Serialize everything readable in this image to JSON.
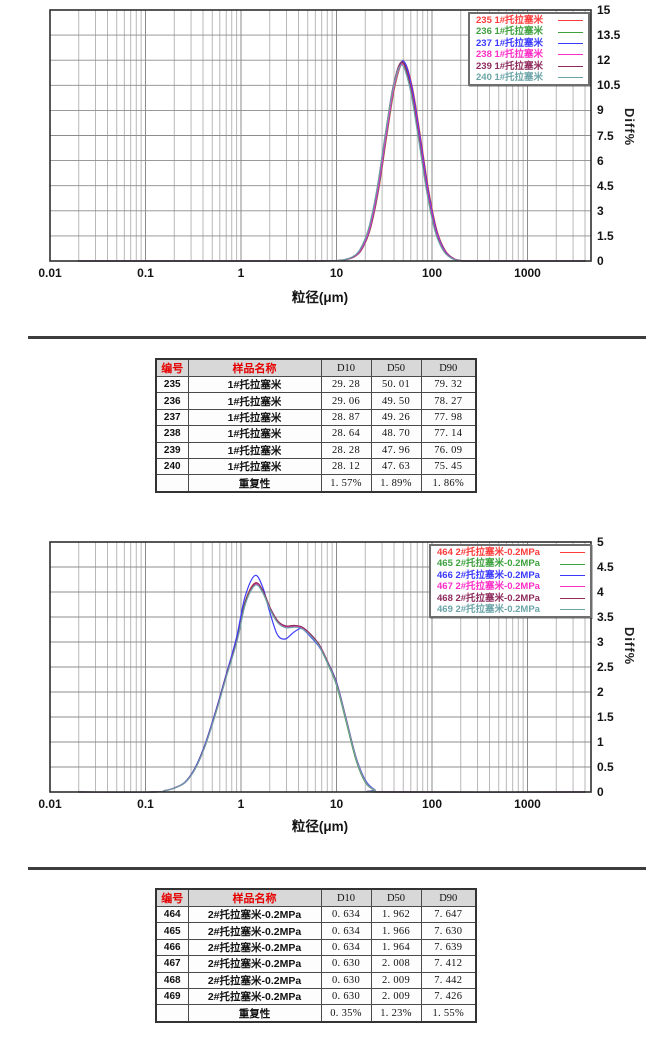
{
  "chart_data": [
    {
      "type": "line",
      "title": "",
      "xlabel": "粒径(μm)",
      "ylabel": "Diff%",
      "x_scale_type": "log",
      "xlim": [
        0.01,
        4600
      ],
      "ylim": [
        0,
        15
      ],
      "x_ticks": [
        0.01,
        0.1,
        1,
        10,
        100,
        1000
      ],
      "y_ticks": [
        15,
        13.5,
        12,
        10.5,
        9,
        7.5,
        6,
        4.5,
        3,
        1.5,
        0
      ],
      "grid": true,
      "legend_position": "top-right",
      "peak": {
        "mode_um": 49,
        "peak_diff_pct": 11.9
      },
      "base_curve": {
        "x": [
          0.02,
          5,
          10,
          12,
          15,
          18,
          22,
          27,
          33,
          40,
          49,
          60,
          73,
          90,
          110,
          135,
          165,
          200,
          280,
          4000
        ],
        "y": [
          0,
          0,
          0.02,
          0.07,
          0.25,
          0.7,
          1.9,
          4.3,
          7.6,
          10.5,
          11.9,
          10.5,
          7.6,
          4.2,
          1.8,
          0.6,
          0.15,
          0.02,
          0,
          0
        ]
      },
      "series": [
        {
          "label": "235 1#托拉塞米",
          "color": "#ff3b3b",
          "x_scale": 1.027,
          "y_scale": 1.0
        },
        {
          "label": "236 1#托拉塞米",
          "color": "#3ea13e",
          "x_scale": 1.016,
          "y_scale": 0.995
        },
        {
          "label": "237 1#托拉塞米",
          "color": "#3a3aff",
          "x_scale": 1.011,
          "y_scale": 1.005
        },
        {
          "label": "238 1#托拉塞米",
          "color": "#ff2ec6",
          "x_scale": 1.0,
          "y_scale": 0.99
        },
        {
          "label": "239 1#托拉塞米",
          "color": "#8e2b5c",
          "x_scale": 0.985,
          "y_scale": 1.0
        },
        {
          "label": "240 1#托拉塞米",
          "color": "#6ba4a8",
          "x_scale": 0.978,
          "y_scale": 0.985
        }
      ]
    },
    {
      "type": "line",
      "title": "",
      "xlabel": "粒径(μm)",
      "ylabel": "Diff%",
      "x_scale_type": "log",
      "xlim": [
        0.01,
        4600
      ],
      "ylim": [
        0,
        5
      ],
      "x_ticks": [
        0.01,
        0.1,
        1,
        10,
        100,
        1000
      ],
      "y_ticks": [
        5,
        4.5,
        4,
        3.5,
        3,
        2.5,
        2,
        1.5,
        1,
        0.5,
        0
      ],
      "grid": true,
      "legend_position": "top-right",
      "peak": {
        "mode1_um": 1.4,
        "peak1_diff_pct": 4.2,
        "mode2_um": 4.0,
        "peak2_diff_pct": 3.3
      },
      "base_curve": {
        "x": [
          0.02,
          0.12,
          0.16,
          0.2,
          0.26,
          0.33,
          0.42,
          0.55,
          0.7,
          0.9,
          1.1,
          1.4,
          1.7,
          2.0,
          2.4,
          2.9,
          3.6,
          4.3,
          5.2,
          6.5,
          8,
          10,
          12.5,
          16,
          20,
          25,
          32,
          4000
        ],
        "y": [
          0,
          0,
          0.03,
          0.08,
          0.2,
          0.48,
          0.95,
          1.65,
          2.35,
          3.05,
          3.8,
          4.18,
          4.0,
          3.68,
          3.42,
          3.32,
          3.33,
          3.3,
          3.17,
          2.95,
          2.6,
          2.15,
          1.45,
          0.65,
          0.2,
          0.04,
          0,
          0
        ]
      },
      "series": [
        {
          "label": "464 2#托拉塞米-0.2MPa",
          "color": "#ff3b3b",
          "x_scale": 1.0,
          "y_scale": 1.0
        },
        {
          "label": "465 2#托拉塞米-0.2MPa",
          "color": "#3ea13e",
          "x_scale": 0.998,
          "y_scale": 0.995
        },
        {
          "label": "466 2#托拉塞米-0.2MPa",
          "color": "#3a3aff",
          "x_scale": 1.0,
          "y_scale": 1.0,
          "curve": {
            "x": [
              0.02,
              0.12,
              0.16,
              0.2,
              0.26,
              0.33,
              0.42,
              0.55,
              0.7,
              0.9,
              1.1,
              1.4,
              1.7,
              2.0,
              2.4,
              2.9,
              3.6,
              4.3,
              5.2,
              6.5,
              8,
              10,
              12.5,
              16,
              20,
              25,
              32,
              4000
            ],
            "y": [
              0,
              0,
              0.03,
              0.08,
              0.2,
              0.48,
              0.95,
              1.65,
              2.35,
              3.1,
              3.9,
              4.33,
              4.08,
              3.6,
              3.15,
              3.06,
              3.2,
              3.27,
              3.13,
              2.92,
              2.62,
              2.2,
              1.5,
              0.7,
              0.24,
              0.05,
              0,
              0
            ]
          }
        },
        {
          "label": "467 2#托拉塞米-0.2MPa",
          "color": "#ff2ec6",
          "x_scale": 1.012,
          "y_scale": 0.995
        },
        {
          "label": "468 2#托拉塞米-0.2MPa",
          "color": "#8e2b5c",
          "x_scale": 1.013,
          "y_scale": 1.0
        },
        {
          "label": "469 2#托拉塞米-0.2MPa",
          "color": "#6ba4a8",
          "x_scale": 1.012,
          "y_scale": 0.99
        }
      ]
    }
  ],
  "tables": [
    {
      "headers": [
        "编号",
        "样品名称",
        "D10",
        "D50",
        "D90"
      ],
      "rows": [
        [
          "235",
          "1#托拉塞米",
          "29. 28",
          "50. 01",
          "79. 32"
        ],
        [
          "236",
          "1#托拉塞米",
          "29. 06",
          "49. 50",
          "78. 27"
        ],
        [
          "237",
          "1#托拉塞米",
          "28. 87",
          "49. 26",
          "77. 98"
        ],
        [
          "238",
          "1#托拉塞米",
          "28. 64",
          "48. 70",
          "77. 14"
        ],
        [
          "239",
          "1#托拉塞米",
          "28. 28",
          "47. 96",
          "76. 09"
        ],
        [
          "240",
          "1#托拉塞米",
          "28. 12",
          "47. 63",
          "75. 45"
        ],
        [
          "",
          "重复性",
          "1. 57%",
          "1. 89%",
          "1. 86%"
        ]
      ]
    },
    {
      "headers": [
        "编号",
        "样品名称",
        "D10",
        "D50",
        "D90"
      ],
      "rows": [
        [
          "464",
          "2#托拉塞米-0.2MPa",
          "0. 634",
          "1. 962",
          "7. 647"
        ],
        [
          "465",
          "2#托拉塞米-0.2MPa",
          "0. 634",
          "1. 966",
          "7. 630"
        ],
        [
          "466",
          "2#托拉塞米-0.2MPa",
          "0. 634",
          "1. 964",
          "7. 639"
        ],
        [
          "467",
          "2#托拉塞米-0.2MPa",
          "0. 630",
          "2. 008",
          "7. 412"
        ],
        [
          "468",
          "2#托拉塞米-0.2MPa",
          "0. 630",
          "2. 009",
          "7. 442"
        ],
        [
          "469",
          "2#托拉塞米-0.2MPa",
          "0. 630",
          "2. 009",
          "7. 426"
        ],
        [
          "",
          "重复性",
          "0. 35%",
          "1. 23%",
          "1. 55%"
        ]
      ]
    }
  ],
  "colors": {
    "grid_minor": "#b0b0b0",
    "grid_major": "#8c8c8c",
    "plot_border": "#2e2e2e",
    "separator": "#3d3d3d",
    "table_header_bg": "#d8d8d8",
    "table_header_red": "#e60000"
  }
}
